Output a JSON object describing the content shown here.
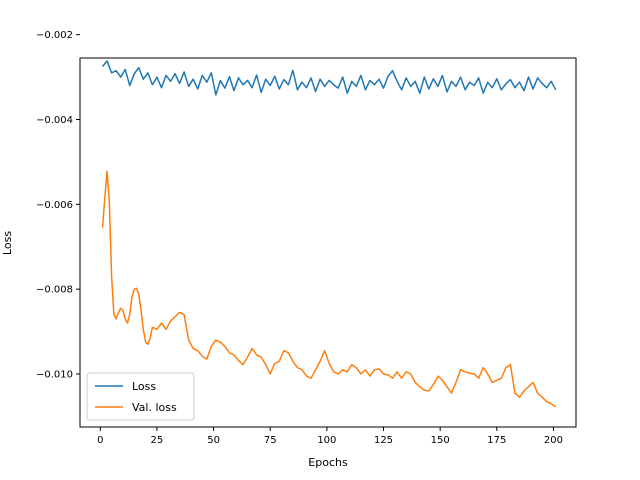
{
  "chart_data": {
    "type": "line",
    "title": "",
    "xlabel": "Epochs",
    "ylabel": "Loss",
    "xlim": [
      -8.95,
      209.95
    ],
    "ylim": [
      -0.01125,
      -0.00255
    ],
    "xticks": [
      0,
      25,
      50,
      75,
      100,
      125,
      150,
      175,
      200
    ],
    "xtick_labels": [
      "0",
      "25",
      "50",
      "75",
      "100",
      "125",
      "150",
      "175",
      "200"
    ],
    "yticks": [
      -0.01,
      -0.008,
      -0.006,
      -0.004,
      -0.002
    ],
    "ytick_labels": [
      "−0.010",
      "−0.008",
      "−0.006",
      "−0.004",
      "−0.002"
    ],
    "grid": false,
    "legend_position": "lower-left",
    "series": [
      {
        "name": "Loss",
        "color": "#1f77b4",
        "x": [
          1,
          3,
          5,
          7,
          9,
          11,
          13,
          15,
          17,
          19,
          21,
          23,
          25,
          27,
          29,
          31,
          33,
          35,
          37,
          39,
          41,
          43,
          45,
          47,
          49,
          51,
          53,
          55,
          57,
          59,
          61,
          63,
          65,
          67,
          69,
          71,
          73,
          75,
          77,
          79,
          81,
          83,
          85,
          87,
          89,
          91,
          93,
          95,
          97,
          99,
          101,
          103,
          105,
          107,
          109,
          111,
          113,
          115,
          117,
          119,
          121,
          123,
          125,
          127,
          129,
          131,
          133,
          135,
          137,
          139,
          141,
          143,
          145,
          147,
          149,
          151,
          153,
          155,
          157,
          159,
          161,
          163,
          165,
          167,
          169,
          171,
          173,
          175,
          177,
          179,
          181,
          183,
          185,
          187,
          189,
          191,
          193,
          195,
          197,
          199,
          201
        ],
        "values": [
          -0.00275,
          -0.00262,
          -0.0029,
          -0.00285,
          -0.003,
          -0.00282,
          -0.0032,
          -0.00292,
          -0.00278,
          -0.00305,
          -0.0029,
          -0.00318,
          -0.003,
          -0.00325,
          -0.00296,
          -0.0031,
          -0.00292,
          -0.00315,
          -0.00288,
          -0.00322,
          -0.00305,
          -0.00328,
          -0.00296,
          -0.00312,
          -0.0029,
          -0.00342,
          -0.00308,
          -0.00326,
          -0.00299,
          -0.00332,
          -0.00302,
          -0.00318,
          -0.00308,
          -0.00325,
          -0.00295,
          -0.00336,
          -0.00305,
          -0.0032,
          -0.00298,
          -0.00328,
          -0.00306,
          -0.00318,
          -0.00284,
          -0.0033,
          -0.00312,
          -0.00325,
          -0.00302,
          -0.00334,
          -0.00305,
          -0.00322,
          -0.00308,
          -0.00318,
          -0.00326,
          -0.003,
          -0.00338,
          -0.0031,
          -0.00322,
          -0.00296,
          -0.0033,
          -0.00308,
          -0.00318,
          -0.00305,
          -0.00326,
          -0.00298,
          -0.00285,
          -0.0031,
          -0.0033,
          -0.00302,
          -0.00322,
          -0.0031,
          -0.00338,
          -0.003,
          -0.00328,
          -0.00304,
          -0.00322,
          -0.00296,
          -0.00335,
          -0.0031,
          -0.00322,
          -0.003,
          -0.0033,
          -0.00312,
          -0.0032,
          -0.00302,
          -0.00338,
          -0.00312,
          -0.00325,
          -0.00304,
          -0.0033,
          -0.00316,
          -0.00306,
          -0.00325,
          -0.00312,
          -0.00332,
          -0.003,
          -0.00328,
          -0.00302,
          -0.00315,
          -0.00325,
          -0.0031,
          -0.0033
        ]
      },
      {
        "name": "Val. loss",
        "color": "#ff7f0e",
        "x": [
          1,
          2,
          3,
          4,
          5,
          6,
          7,
          8,
          9,
          10,
          11,
          12,
          13,
          14,
          15,
          16,
          17,
          18,
          19,
          20,
          21,
          22,
          23,
          25,
          27,
          29,
          31,
          33,
          35,
          37,
          39,
          41,
          43,
          45,
          47,
          49,
          51,
          53,
          55,
          57,
          59,
          61,
          63,
          65,
          67,
          69,
          71,
          73,
          75,
          77,
          79,
          81,
          83,
          85,
          87,
          89,
          91,
          93,
          95,
          97,
          99,
          101,
          103,
          105,
          107,
          109,
          111,
          113,
          115,
          117,
          119,
          121,
          123,
          125,
          127,
          129,
          131,
          133,
          135,
          137,
          139,
          141,
          143,
          145,
          147,
          149,
          151,
          153,
          155,
          157,
          159,
          161,
          163,
          165,
          167,
          169,
          171,
          173,
          175,
          177,
          179,
          181,
          183,
          185,
          187,
          189,
          191,
          193,
          195,
          197,
          199,
          201
        ],
        "values": [
          -0.00655,
          -0.00585,
          -0.00522,
          -0.00595,
          -0.0077,
          -0.0086,
          -0.0087,
          -0.00855,
          -0.00845,
          -0.0085,
          -0.0087,
          -0.0088,
          -0.0086,
          -0.00818,
          -0.008,
          -0.00798,
          -0.00812,
          -0.0085,
          -0.00895,
          -0.00925,
          -0.0093,
          -0.00915,
          -0.0089,
          -0.00895,
          -0.0088,
          -0.00895,
          -0.00875,
          -0.00865,
          -0.00855,
          -0.0086,
          -0.0092,
          -0.0094,
          -0.00945,
          -0.00958,
          -0.00965,
          -0.00935,
          -0.0092,
          -0.00925,
          -0.00935,
          -0.0095,
          -0.00955,
          -0.00968,
          -0.00978,
          -0.0096,
          -0.0094,
          -0.00955,
          -0.0096,
          -0.00978,
          -0.01,
          -0.00975,
          -0.0097,
          -0.00945,
          -0.0095,
          -0.0097,
          -0.00985,
          -0.0099,
          -0.01005,
          -0.0101,
          -0.0099,
          -0.0097,
          -0.00945,
          -0.00975,
          -0.00995,
          -0.01,
          -0.0099,
          -0.00995,
          -0.00978,
          -0.00985,
          -0.01,
          -0.0099,
          -0.01005,
          -0.0099,
          -0.00988,
          -0.01,
          -0.01002,
          -0.0101,
          -0.00995,
          -0.0101,
          -0.00995,
          -0.01,
          -0.0102,
          -0.0103,
          -0.01038,
          -0.0104,
          -0.01025,
          -0.01005,
          -0.01015,
          -0.0103,
          -0.01045,
          -0.0102,
          -0.0099,
          -0.00995,
          -0.00998,
          -0.01,
          -0.0101,
          -0.00985,
          -0.01,
          -0.0102,
          -0.01015,
          -0.0101,
          -0.00985,
          -0.00978,
          -0.01045,
          -0.01055,
          -0.0104,
          -0.0103,
          -0.0102,
          -0.01045,
          -0.01055,
          -0.01065,
          -0.0107,
          -0.01078
        ]
      }
    ]
  }
}
